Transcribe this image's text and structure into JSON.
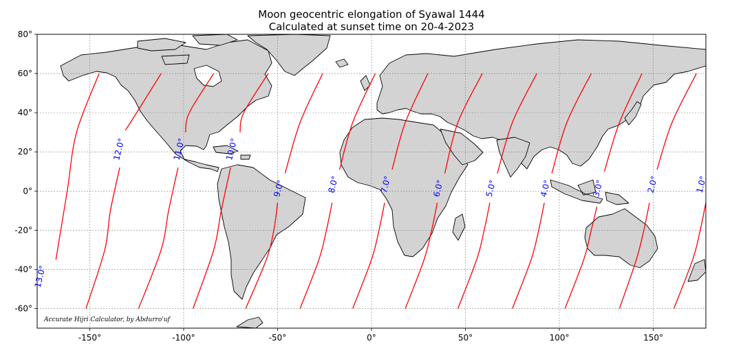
{
  "title": {
    "line1": "Moon geocentric elongation of Syawal 1444",
    "line2": "Calculated at sunset time on 20-4-2023"
  },
  "credit": "Accurate Hijri Calculator, by Abdurro'uf",
  "colors": {
    "land": "#d3d3d3",
    "ocean": "#ffffff",
    "border": "#000000",
    "contour": "#ff0000",
    "contour_label": "#0000ff",
    "grid": "#808080"
  },
  "chart_data": {
    "type": "contour-map",
    "projection": "plate-carree",
    "xlim": [
      -178,
      178
    ],
    "ylim": [
      -70,
      80
    ],
    "grid": true,
    "x_ticks": [
      {
        "value": -150,
        "label": "-150°"
      },
      {
        "value": -100,
        "label": "-100°"
      },
      {
        "value": -50,
        "label": "-50°"
      },
      {
        "value": 0,
        "label": "0°"
      },
      {
        "value": 50,
        "label": "50°"
      },
      {
        "value": 100,
        "label": "100°"
      },
      {
        "value": 150,
        "label": "150°"
      }
    ],
    "y_ticks": [
      {
        "value": 80,
        "label": "80°"
      },
      {
        "value": 60,
        "label": "60°"
      },
      {
        "value": 40,
        "label": "40°"
      },
      {
        "value": 20,
        "label": "20°"
      },
      {
        "value": 0,
        "label": "0°"
      },
      {
        "value": -20,
        "label": "-20°"
      },
      {
        "value": -40,
        "label": "-40°"
      },
      {
        "value": -60,
        "label": "-60°"
      }
    ],
    "contours": [
      {
        "level": 13,
        "label": "13.0°",
        "points": [
          [
            -145,
            60
          ],
          [
            -157,
            30
          ],
          [
            -162,
            0
          ],
          [
            -168,
            -35
          ]
        ],
        "label_at": [
          -175,
          -44
        ]
      },
      {
        "level": 12,
        "label": "12.0°",
        "points": [
          [
            -112,
            60
          ],
          [
            -125,
            40
          ],
          [
            -131,
            31
          ]
        ],
        "lower_points": [
          [
            -134,
            12
          ],
          [
            -139,
            -10
          ],
          [
            -142,
            -30
          ],
          [
            -152,
            -60
          ]
        ],
        "label_at": [
          -133,
          21
        ]
      },
      {
        "level": 11,
        "label": "11.0°",
        "points": [
          [
            -84,
            60
          ],
          [
            -97,
            40
          ],
          [
            -99,
            30
          ]
        ],
        "lower_points": [
          [
            -103,
            12
          ],
          [
            -108,
            -10
          ],
          [
            -112,
            -30
          ],
          [
            -124,
            -60
          ]
        ],
        "label_at": [
          -101,
          21
        ]
      },
      {
        "level": 10,
        "label": "10.0°",
        "points": [
          [
            -55,
            60
          ],
          [
            -68,
            40
          ],
          [
            -70,
            30
          ]
        ],
        "lower_points": [
          [
            -75,
            12
          ],
          [
            -80,
            -10
          ],
          [
            -84,
            -30
          ],
          [
            -95,
            -60
          ]
        ],
        "label_at": [
          -73,
          21
        ]
      },
      {
        "level": 9,
        "label": "9.0°",
        "points": [
          [
            -26,
            60
          ],
          [
            -38,
            35
          ],
          [
            -46,
            9
          ]
        ],
        "lower_points": [
          [
            -50,
            -6
          ],
          [
            -52,
            -20
          ],
          [
            -56,
            -35
          ],
          [
            -67,
            -60
          ]
        ],
        "label_at": [
          -48,
          1
        ]
      },
      {
        "level": 8,
        "label": "8.0°",
        "points": [
          [
            2,
            60
          ],
          [
            -10,
            35
          ],
          [
            -17,
            11
          ]
        ],
        "lower_points": [
          [
            -21,
            -6
          ],
          [
            -24,
            -20
          ],
          [
            -28,
            -35
          ],
          [
            -38,
            -60
          ]
        ],
        "label_at": [
          -19,
          3
        ]
      },
      {
        "level": 7,
        "label": "7.0°",
        "points": [
          [
            30,
            60
          ],
          [
            18,
            35
          ],
          [
            11,
            11
          ]
        ],
        "lower_points": [
          [
            7,
            -6
          ],
          [
            4,
            -20
          ],
          [
            0,
            -35
          ],
          [
            -10,
            -60
          ]
        ],
        "label_at": [
          9,
          3
        ]
      },
      {
        "level": 6,
        "label": "6.0°",
        "points": [
          [
            59,
            60
          ],
          [
            46,
            35
          ],
          [
            39,
            9
          ]
        ],
        "lower_points": [
          [
            35,
            -6
          ],
          [
            32,
            -20
          ],
          [
            28,
            -35
          ],
          [
            18,
            -60
          ]
        ],
        "label_at": [
          37,
          1
        ]
      },
      {
        "level": 5,
        "label": "5.0°",
        "points": [
          [
            88,
            60
          ],
          [
            75,
            35
          ],
          [
            67,
            9
          ]
        ],
        "lower_points": [
          [
            63,
            -6
          ],
          [
            60,
            -20
          ],
          [
            56,
            -35
          ],
          [
            46,
            -60
          ]
        ],
        "label_at": [
          65,
          1
        ]
      },
      {
        "level": 4,
        "label": "4.0°",
        "points": [
          [
            117,
            60
          ],
          [
            104,
            35
          ],
          [
            96,
            9
          ]
        ],
        "lower_points": [
          [
            92,
            -6
          ],
          [
            89,
            -20
          ],
          [
            85,
            -35
          ],
          [
            75,
            -60
          ]
        ],
        "label_at": [
          94,
          1
        ]
      },
      {
        "level": 3,
        "label": "3.0°",
        "points": [
          [
            144,
            60
          ],
          [
            132,
            35
          ],
          [
            124,
            10
          ]
        ],
        "lower_points": [
          [
            120,
            -8
          ],
          [
            117,
            -20
          ],
          [
            113,
            -35
          ],
          [
            103,
            -60
          ]
        ],
        "label_at": [
          122,
          1
        ]
      },
      {
        "level": 2,
        "label": "2.0°",
        "points": [
          [
            173,
            60
          ],
          [
            160,
            35
          ],
          [
            152,
            11
          ]
        ],
        "lower_points": [
          [
            148,
            -6
          ],
          [
            145,
            -20
          ],
          [
            141,
            -35
          ],
          [
            132,
            -60
          ]
        ],
        "label_at": [
          151,
          3
        ]
      },
      {
        "level": 1,
        "label": "1.0°",
        "lower_points": [
          [
            178,
            -6
          ],
          [
            175,
            -20
          ],
          [
            171,
            -35
          ],
          [
            161,
            -60
          ]
        ],
        "label_at": [
          177,
          3
        ]
      }
    ]
  }
}
